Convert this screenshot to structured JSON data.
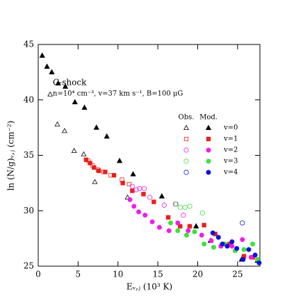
{
  "chart_data": {
    "type": "scatter",
    "annotations": [
      "C-shock",
      "n=10⁴ cm⁻³, v=37 km s⁻¹, B=100 μG"
    ],
    "x_label": "Eᵥ,ⱼ (10³ K)",
    "y_label": "ln (N/g)ᵥ,ⱼ (cm⁻²)",
    "xlim": [
      0,
      27.8
    ],
    "ylim": [
      25,
      45
    ],
    "xticks": [
      0,
      5,
      10,
      15,
      20,
      25
    ],
    "yticks": [
      25,
      30,
      35,
      40,
      45
    ],
    "legend_headers": [
      "Obs.",
      "Mod."
    ],
    "series": [
      {
        "name": "v=0",
        "color": "#000000",
        "marker": "triangle",
        "obs": {
          "x": [
            1.5,
            2.4,
            3.3,
            4.5,
            5.7,
            7.1,
            11.2
          ],
          "y": [
            40.5,
            37.8,
            37.2,
            35.4,
            35.1,
            32.6,
            31.2
          ]
        },
        "mod": {
          "x": [
            0.5,
            1.1,
            1.7,
            2.5,
            3.4,
            4.6,
            5.8,
            7.3,
            8.6,
            10.2,
            11.9,
            15.5,
            19.8,
            21.6,
            25.5,
            27.5
          ],
          "y": [
            44.0,
            43.0,
            42.5,
            41.5,
            41.2,
            39.8,
            39.3,
            37.5,
            36.7,
            34.5,
            33.3,
            31.3,
            28.6,
            27.3,
            25.6,
            25.5
          ]
        }
      },
      {
        "name": "v=1",
        "color": "#e8201c",
        "marker": "square",
        "obs": {
          "x": [
            6.3,
            6.8,
            7.5,
            8.2,
            9.1,
            10.5,
            11.4
          ],
          "y": [
            34.5,
            34.1,
            33.7,
            33.5,
            33.2,
            32.8,
            32.4
          ]
        },
        "mod": {
          "x": [
            6.0,
            6.5,
            7.0,
            7.6,
            8.4,
            9.5,
            10.6,
            11.8,
            13.2,
            14.5,
            16.3,
            17.8,
            19.0,
            20.8,
            22.2,
            24.0,
            25.8,
            26.9
          ],
          "y": [
            34.6,
            34.3,
            33.9,
            33.6,
            33.5,
            33.2,
            32.5,
            31.8,
            31.5,
            30.8,
            29.4,
            28.6,
            28.6,
            28.7,
            27.9,
            27.0,
            25.9,
            25.8
          ]
        }
      },
      {
        "name": "v=2",
        "color": "#ee1ee6",
        "marker": "circle",
        "obs": {
          "x": [
            11.8,
            12.3,
            12.7,
            13.3,
            14.0,
            15.8,
            17.2,
            18.2
          ],
          "y": [
            32.2,
            31.9,
            32.0,
            32.0,
            31.2,
            30.5,
            30.6,
            29.6
          ]
        },
        "mod": {
          "x": [
            11.5,
            12.0,
            12.6,
            13.4,
            14.3,
            15.2,
            16.4,
            17.5,
            18.8,
            20.5,
            21.7,
            22.9,
            24.3,
            25.6,
            26.7
          ],
          "y": [
            31.0,
            30.4,
            29.9,
            29.6,
            29.0,
            28.5,
            28.2,
            28.9,
            28.2,
            27.8,
            27.3,
            26.8,
            26.8,
            27.4,
            25.8
          ]
        }
      },
      {
        "name": "v=3",
        "color": "#3ee03e",
        "marker": "circle",
        "obs": {
          "x": [
            17.3,
            17.8,
            18.4,
            19.0,
            20.6
          ],
          "y": [
            30.6,
            30.3,
            30.3,
            30.4,
            29.8
          ]
        },
        "mod": {
          "x": [
            16.6,
            17.5,
            18.6,
            19.6,
            20.8,
            22.0,
            23.4,
            24.7,
            25.8,
            26.9,
            27.5
          ],
          "y": [
            28.9,
            28.2,
            27.8,
            28.1,
            27.0,
            26.7,
            27.0,
            26.4,
            26.5,
            27.0,
            25.6
          ]
        }
      },
      {
        "name": "v=4",
        "color": "#1010e0",
        "marker": "circle",
        "obs": {
          "x": [
            25.6
          ],
          "y": [
            28.9
          ]
        },
        "mod": {
          "x": [
            21.9,
            22.6,
            23.1,
            23.7,
            24.3,
            24.9,
            25.7,
            26.4,
            27.2,
            27.7
          ],
          "y": [
            28.0,
            27.6,
            27.0,
            26.8,
            27.2,
            26.6,
            25.6,
            26.5,
            26.0,
            25.3
          ]
        }
      }
    ]
  }
}
